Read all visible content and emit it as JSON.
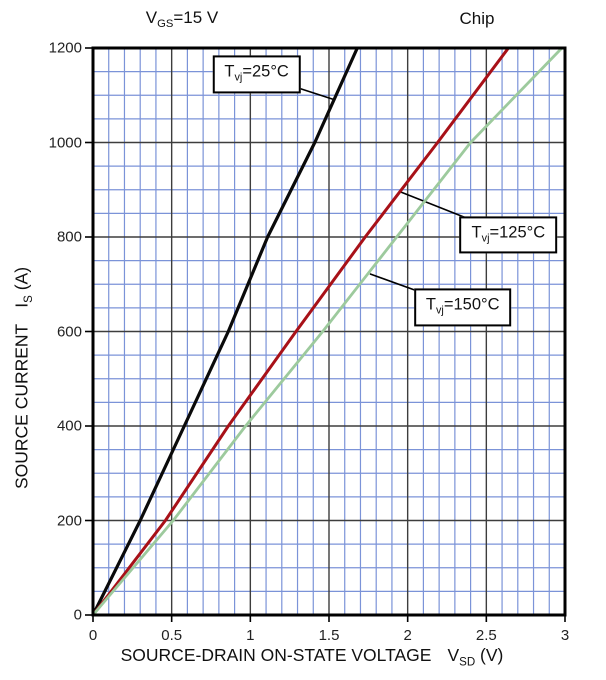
{
  "header": {
    "vgs": {
      "prefix": "V",
      "sub": "GS",
      "rest": "=15 V"
    },
    "chip": "Chip"
  },
  "chart_data": {
    "type": "line",
    "title": "",
    "xlabel": "SOURCE-DRAIN ON-STATE VOLTAGE VSD (V)",
    "ylabel": "SOURCE CURRENT IS (A)",
    "xlabel_parts": {
      "title": "SOURCE-DRAIN ON-STATE VOLTAGE",
      "symbol": "V",
      "symbol_sub": "SD",
      "unit": "(V)"
    },
    "ylabel_parts": {
      "title": "SOURCE CURRENT",
      "symbol": "I",
      "symbol_sub": "S",
      "unit": "(A)"
    },
    "xlim": [
      0,
      3
    ],
    "ylim": [
      0,
      1200
    ],
    "x_major": 0.5,
    "x_minor": 0.1,
    "y_major": 200,
    "y_minor": 50,
    "x_ticks": [
      "0",
      "0.5",
      "1",
      "1.5",
      "2",
      "2.5",
      "3"
    ],
    "x_tick_values": [
      0,
      0.5,
      1,
      1.5,
      2,
      2.5,
      3
    ],
    "y_ticks": [
      "0",
      "200",
      "400",
      "600",
      "800",
      "1000",
      "1200"
    ],
    "y_tick_values": [
      0,
      200,
      400,
      600,
      800,
      1000,
      1200
    ],
    "grid": {
      "minor_color": "#7b93d8",
      "major_color": "#3d3d3d",
      "border_color": "#000000"
    },
    "series": [
      {
        "name": "Tvj=25°C",
        "color": "#0a0a0a",
        "style": "solid",
        "width": 3.2,
        "points": [
          [
            0,
            0
          ],
          [
            0.3,
            200
          ],
          [
            0.58,
            400
          ],
          [
            0.86,
            600
          ],
          [
            1.11,
            800
          ],
          [
            1.41,
            1000
          ],
          [
            1.68,
            1200
          ]
        ]
      },
      {
        "name": "Tvj=125°C",
        "color": "#a81118",
        "style": "solid",
        "width": 3.0,
        "points": [
          [
            0,
            0
          ],
          [
            0.46,
            200
          ],
          [
            0.86,
            400
          ],
          [
            1.29,
            600
          ],
          [
            1.73,
            800
          ],
          [
            2.19,
            1000
          ],
          [
            2.64,
            1200
          ]
        ]
      },
      {
        "name": "Tvj=150°C",
        "color": "#9dca9d",
        "style": "solid",
        "width": 2.8,
        "points": [
          [
            0,
            0
          ],
          [
            0.51,
            200
          ],
          [
            0.97,
            400
          ],
          [
            1.46,
            600
          ],
          [
            1.93,
            800
          ],
          [
            2.4,
            1000
          ],
          [
            2.98,
            1200
          ]
        ]
      }
    ],
    "callouts": [
      {
        "prefix": "T",
        "sub": "vj",
        "rest": "=25°C",
        "center": [
          1.04,
          1144
        ],
        "target": [
          1.54,
          1090
        ]
      },
      {
        "prefix": "T",
        "sub": "vj",
        "rest": "=125°C",
        "center": [
          2.64,
          805
        ],
        "target": [
          1.95,
          896
        ]
      },
      {
        "prefix": "T",
        "sub": "vj",
        "rest": "=150°C",
        "center": [
          2.35,
          651
        ],
        "target": [
          1.76,
          722
        ]
      }
    ]
  }
}
